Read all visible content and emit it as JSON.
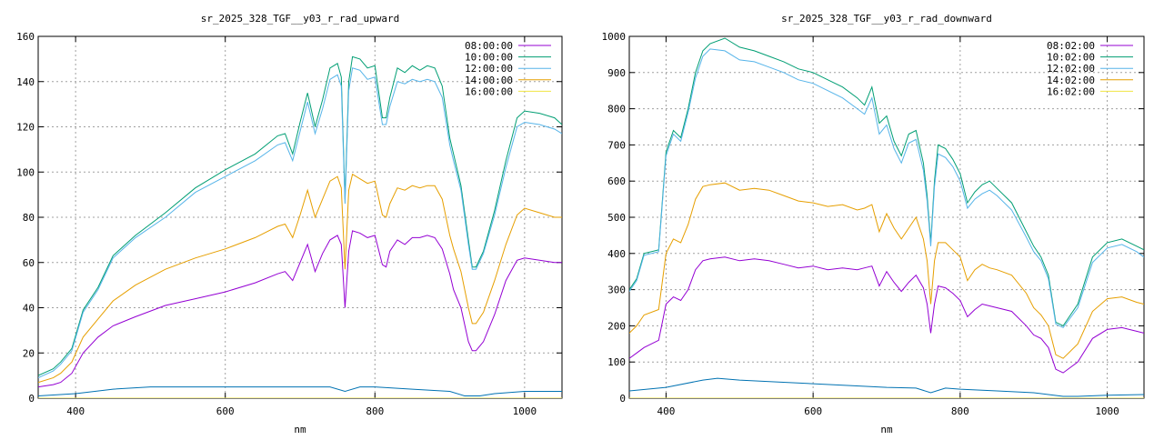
{
  "chart_data": [
    {
      "type": "line",
      "title": "sr_2025_328_TGF__y03_r_rad_upward",
      "xlabel": "nm",
      "ylabel": "",
      "xlim": [
        350,
        1050
      ],
      "ylim": [
        0,
        160
      ],
      "xticks": [
        400,
        600,
        800,
        1000
      ],
      "yticks": [
        0,
        20,
        40,
        60,
        80,
        100,
        120,
        140,
        160
      ],
      "grid": true,
      "legend_position": "top-right",
      "series": [
        {
          "name": "08:00:00",
          "color": "#9400d3",
          "x": [
            350,
            370,
            380,
            395,
            410,
            430,
            450,
            480,
            520,
            560,
            600,
            640,
            670,
            680,
            690,
            700,
            710,
            720,
            730,
            740,
            750,
            755,
            760,
            765,
            770,
            780,
            790,
            800,
            810,
            815,
            820,
            830,
            840,
            850,
            860,
            870,
            880,
            890,
            900,
            905,
            915,
            925,
            930,
            935,
            945,
            960,
            975,
            990,
            1000,
            1020,
            1040,
            1050
          ],
          "y": [
            5,
            6,
            7,
            11,
            20,
            27,
            32,
            36,
            41,
            44,
            47,
            51,
            55,
            56,
            52,
            60,
            68,
            56,
            64,
            70,
            72,
            68,
            40,
            65,
            74,
            73,
            71,
            72,
            59,
            58,
            65,
            70,
            68,
            71,
            71,
            72,
            71,
            66,
            55,
            48,
            40,
            25,
            21,
            21,
            25,
            37,
            52,
            61,
            62,
            61,
            60,
            60
          ]
        },
        {
          "name": "10:00:00",
          "color": "#009e73",
          "x": [
            350,
            370,
            380,
            395,
            410,
            430,
            450,
            480,
            520,
            560,
            600,
            640,
            670,
            680,
            690,
            700,
            710,
            720,
            730,
            740,
            750,
            755,
            760,
            765,
            770,
            780,
            790,
            800,
            810,
            815,
            820,
            830,
            840,
            850,
            860,
            870,
            880,
            890,
            900,
            905,
            915,
            925,
            930,
            935,
            945,
            960,
            975,
            990,
            1000,
            1020,
            1040,
            1050
          ],
          "y": [
            10,
            13,
            16,
            22,
            39,
            49,
            63,
            72,
            82,
            93,
            101,
            108,
            116,
            117,
            108,
            122,
            135,
            120,
            132,
            146,
            148,
            142,
            88,
            140,
            151,
            150,
            146,
            147,
            124,
            124,
            133,
            146,
            144,
            147,
            145,
            147,
            146,
            138,
            115,
            108,
            94,
            70,
            58,
            58,
            65,
            83,
            105,
            124,
            127,
            126,
            124,
            121
          ]
        },
        {
          "name": "12:00:00",
          "color": "#56b4e9",
          "x": [
            350,
            370,
            380,
            395,
            410,
            430,
            450,
            480,
            520,
            560,
            600,
            640,
            670,
            680,
            690,
            700,
            710,
            720,
            730,
            740,
            750,
            755,
            760,
            765,
            770,
            780,
            790,
            800,
            810,
            815,
            820,
            830,
            840,
            850,
            860,
            870,
            880,
            890,
            900,
            905,
            915,
            925,
            930,
            935,
            945,
            960,
            975,
            990,
            1000,
            1020,
            1040,
            1050
          ],
          "y": [
            9,
            12,
            15,
            21,
            38,
            48,
            62,
            71,
            80,
            91,
            98,
            105,
            112,
            113,
            105,
            118,
            131,
            117,
            128,
            141,
            143,
            138,
            86,
            136,
            146,
            145,
            141,
            142,
            121,
            121,
            129,
            140,
            139,
            141,
            140,
            141,
            140,
            133,
            112,
            105,
            92,
            68,
            57,
            57,
            64,
            81,
            102,
            120,
            122,
            121,
            119,
            117
          ]
        },
        {
          "name": "14:00:00",
          "color": "#e69f00",
          "x": [
            350,
            370,
            380,
            395,
            410,
            430,
            450,
            480,
            520,
            560,
            600,
            640,
            670,
            680,
            690,
            700,
            710,
            720,
            730,
            740,
            750,
            755,
            760,
            765,
            770,
            780,
            790,
            800,
            810,
            815,
            820,
            830,
            840,
            850,
            860,
            870,
            880,
            890,
            900,
            905,
            915,
            925,
            930,
            935,
            945,
            960,
            975,
            990,
            1000,
            1020,
            1040,
            1050
          ],
          "y": [
            7,
            9,
            11,
            16,
            27,
            35,
            43,
            50,
            57,
            62,
            66,
            71,
            76,
            77,
            71,
            81,
            92,
            80,
            88,
            96,
            98,
            93,
            57,
            92,
            99,
            97,
            95,
            96,
            81,
            80,
            86,
            93,
            92,
            94,
            93,
            94,
            94,
            88,
            72,
            66,
            56,
            40,
            33,
            33,
            38,
            52,
            68,
            81,
            84,
            82,
            80,
            80
          ]
        },
        {
          "name": "16:00:00",
          "color": "#f0e442",
          "x": [
            350,
            1050
          ],
          "y": [
            0,
            0
          ]
        },
        {
          "name": "",
          "color": "#0072b2",
          "x": [
            350,
            400,
            450,
            500,
            550,
            600,
            650,
            700,
            740,
            760,
            780,
            800,
            850,
            900,
            920,
            940,
            960,
            1000,
            1050
          ],
          "y": [
            1,
            2,
            4,
            5,
            5,
            5,
            5,
            5,
            5,
            3,
            5,
            5,
            4,
            3,
            1,
            1,
            2,
            3,
            3
          ]
        }
      ]
    },
    {
      "type": "line",
      "title": "sr_2025_328_TGF__y03_r_rad_downward",
      "xlabel": "nm",
      "ylabel": "",
      "xlim": [
        350,
        1050
      ],
      "ylim": [
        0,
        1000
      ],
      "xticks": [
        400,
        600,
        800,
        1000
      ],
      "yticks": [
        0,
        100,
        200,
        300,
        400,
        500,
        600,
        700,
        800,
        900,
        1000
      ],
      "grid": true,
      "legend_position": "top-right",
      "series": [
        {
          "name": "08:02:00",
          "color": "#9400d3",
          "x": [
            350,
            360,
            370,
            390,
            400,
            410,
            420,
            430,
            440,
            450,
            460,
            480,
            500,
            520,
            540,
            560,
            580,
            600,
            620,
            640,
            660,
            670,
            680,
            690,
            700,
            710,
            720,
            730,
            740,
            750,
            755,
            760,
            765,
            770,
            780,
            790,
            800,
            810,
            820,
            830,
            840,
            850,
            870,
            890,
            900,
            910,
            920,
            930,
            940,
            960,
            980,
            1000,
            1020,
            1040,
            1050
          ],
          "y": [
            110,
            125,
            140,
            160,
            260,
            280,
            270,
            300,
            355,
            380,
            385,
            390,
            380,
            385,
            380,
            370,
            360,
            365,
            355,
            360,
            355,
            360,
            365,
            310,
            350,
            320,
            295,
            320,
            340,
            305,
            260,
            180,
            260,
            310,
            305,
            290,
            270,
            225,
            245,
            260,
            255,
            250,
            240,
            200,
            175,
            165,
            140,
            80,
            70,
            100,
            165,
            190,
            195,
            185,
            180
          ]
        },
        {
          "name": "10:02:00",
          "color": "#009e73",
          "x": [
            350,
            360,
            370,
            390,
            400,
            410,
            420,
            430,
            440,
            450,
            460,
            480,
            500,
            520,
            540,
            560,
            580,
            600,
            620,
            640,
            660,
            670,
            680,
            690,
            700,
            710,
            720,
            730,
            740,
            750,
            755,
            760,
            765,
            770,
            780,
            790,
            800,
            810,
            820,
            830,
            840,
            850,
            870,
            890,
            900,
            910,
            920,
            930,
            940,
            960,
            980,
            1000,
            1020,
            1040,
            1050
          ],
          "y": [
            300,
            330,
            400,
            410,
            680,
            740,
            720,
            800,
            900,
            960,
            980,
            995,
            970,
            960,
            945,
            930,
            910,
            900,
            880,
            860,
            830,
            810,
            860,
            760,
            780,
            710,
            670,
            730,
            740,
            650,
            560,
            430,
            600,
            700,
            690,
            660,
            620,
            540,
            570,
            590,
            600,
            580,
            540,
            460,
            420,
            390,
            340,
            210,
            200,
            260,
            390,
            430,
            440,
            420,
            410
          ]
        },
        {
          "name": "12:02:00",
          "color": "#56b4e9",
          "x": [
            350,
            360,
            370,
            390,
            400,
            410,
            420,
            430,
            440,
            450,
            460,
            480,
            500,
            520,
            540,
            560,
            580,
            600,
            620,
            640,
            660,
            670,
            680,
            690,
            700,
            710,
            720,
            730,
            740,
            750,
            755,
            760,
            765,
            770,
            780,
            790,
            800,
            810,
            820,
            830,
            840,
            850,
            870,
            890,
            900,
            910,
            920,
            930,
            940,
            960,
            980,
            1000,
            1020,
            1040,
            1050
          ],
          "y": [
            295,
            325,
            395,
            405,
            670,
            730,
            710,
            790,
            885,
            945,
            965,
            960,
            935,
            930,
            915,
            900,
            880,
            870,
            850,
            830,
            800,
            785,
            830,
            730,
            755,
            690,
            650,
            705,
            715,
            630,
            545,
            420,
            585,
            675,
            665,
            640,
            600,
            525,
            550,
            565,
            575,
            560,
            520,
            445,
            405,
            380,
            330,
            205,
            195,
            250,
            375,
            415,
            425,
            405,
            390
          ]
        },
        {
          "name": "14:02:00",
          "color": "#e69f00",
          "x": [
            350,
            360,
            370,
            390,
            400,
            410,
            420,
            430,
            440,
            450,
            460,
            480,
            500,
            520,
            540,
            560,
            580,
            600,
            620,
            640,
            660,
            670,
            680,
            690,
            700,
            710,
            720,
            730,
            740,
            750,
            755,
            760,
            765,
            770,
            780,
            790,
            800,
            810,
            820,
            830,
            840,
            850,
            870,
            890,
            900,
            910,
            920,
            930,
            940,
            960,
            980,
            1000,
            1020,
            1040,
            1050
          ],
          "y": [
            180,
            200,
            230,
            245,
            400,
            440,
            430,
            480,
            550,
            585,
            590,
            595,
            575,
            580,
            575,
            560,
            545,
            540,
            530,
            535,
            520,
            525,
            535,
            460,
            510,
            470,
            440,
            470,
            500,
            440,
            380,
            260,
            380,
            430,
            430,
            410,
            390,
            325,
            355,
            370,
            360,
            355,
            340,
            290,
            250,
            230,
            200,
            120,
            110,
            150,
            240,
            275,
            280,
            265,
            260
          ]
        },
        {
          "name": "16:02:00",
          "color": "#f0e442",
          "x": [
            350,
            1050
          ],
          "y": [
            0,
            0
          ]
        },
        {
          "name": "",
          "color": "#0072b2",
          "x": [
            350,
            400,
            450,
            470,
            500,
            550,
            600,
            650,
            700,
            740,
            760,
            780,
            800,
            850,
            900,
            920,
            940,
            960,
            1000,
            1050
          ],
          "y": [
            20,
            30,
            50,
            55,
            50,
            45,
            40,
            35,
            30,
            28,
            15,
            28,
            25,
            20,
            15,
            10,
            5,
            5,
            8,
            10
          ]
        }
      ]
    }
  ]
}
